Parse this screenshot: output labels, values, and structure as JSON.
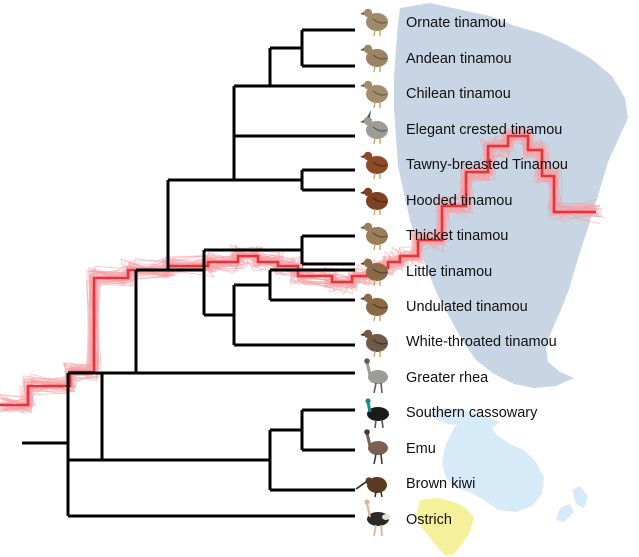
{
  "taxa": [
    {
      "label": "Ornate tinamou",
      "icon": "tinamou-icon",
      "body": "#a08a6a",
      "accent": "#6f5c43"
    },
    {
      "label": "Andean tinamou",
      "icon": "tinamou-icon",
      "body": "#9a8466",
      "accent": "#6a5740"
    },
    {
      "label": "Chilean tinamou",
      "icon": "tinamou-icon",
      "body": "#a38c6c",
      "accent": "#6e5b42"
    },
    {
      "label": "Elegant crested tinamou",
      "icon": "crested-tinamou-icon",
      "body": "#9c9c94",
      "accent": "#5f5f58"
    },
    {
      "label": "Tawny-breasted Tinamou",
      "icon": "tinamou-icon",
      "body": "#8e4a26",
      "accent": "#5a2e16"
    },
    {
      "label": "Hooded tinamou",
      "icon": "tinamou-icon",
      "body": "#7e4222",
      "accent": "#4d2812"
    },
    {
      "label": "Thicket tinamou",
      "icon": "tinamou-icon",
      "body": "#9a7e5a",
      "accent": "#5e4c36"
    },
    {
      "label": "Little tinamou",
      "icon": "tinamou-icon",
      "body": "#8a6a48",
      "accent": "#54402c"
    },
    {
      "label": "Undulated tinamou",
      "icon": "tinamou-icon",
      "body": "#8a6a44",
      "accent": "#4f3c26"
    },
    {
      "label": "White-throated tinamou",
      "icon": "tinamou-icon",
      "body": "#6e5a48",
      "accent": "#3f3228"
    },
    {
      "label": "Greater rhea",
      "icon": "rhea-icon",
      "body": "#9c9c98",
      "accent": "#5c5c58"
    },
    {
      "label": "Southern cassowary",
      "icon": "cassowary-icon",
      "body": "#1a1a1a",
      "accent": "#1b8a8a"
    },
    {
      "label": "Emu",
      "icon": "emu-icon",
      "body": "#7a6050",
      "accent": "#4a382c"
    },
    {
      "label": "Brown kiwi",
      "icon": "kiwi-icon",
      "body": "#5a3a22",
      "accent": "#2e1e12"
    },
    {
      "label": "Ostrich",
      "icon": "ostrich-icon",
      "body": "#2a2a2a",
      "accent": "#e8ddcc"
    }
  ],
  "colors": {
    "tree": "#000000",
    "trace_main": "#e8333a",
    "trace_samples": "#f4a3a8",
    "south_america": "#c7d5e4",
    "australasia": "#d6eaf8",
    "africa": "#f5f09a"
  }
}
